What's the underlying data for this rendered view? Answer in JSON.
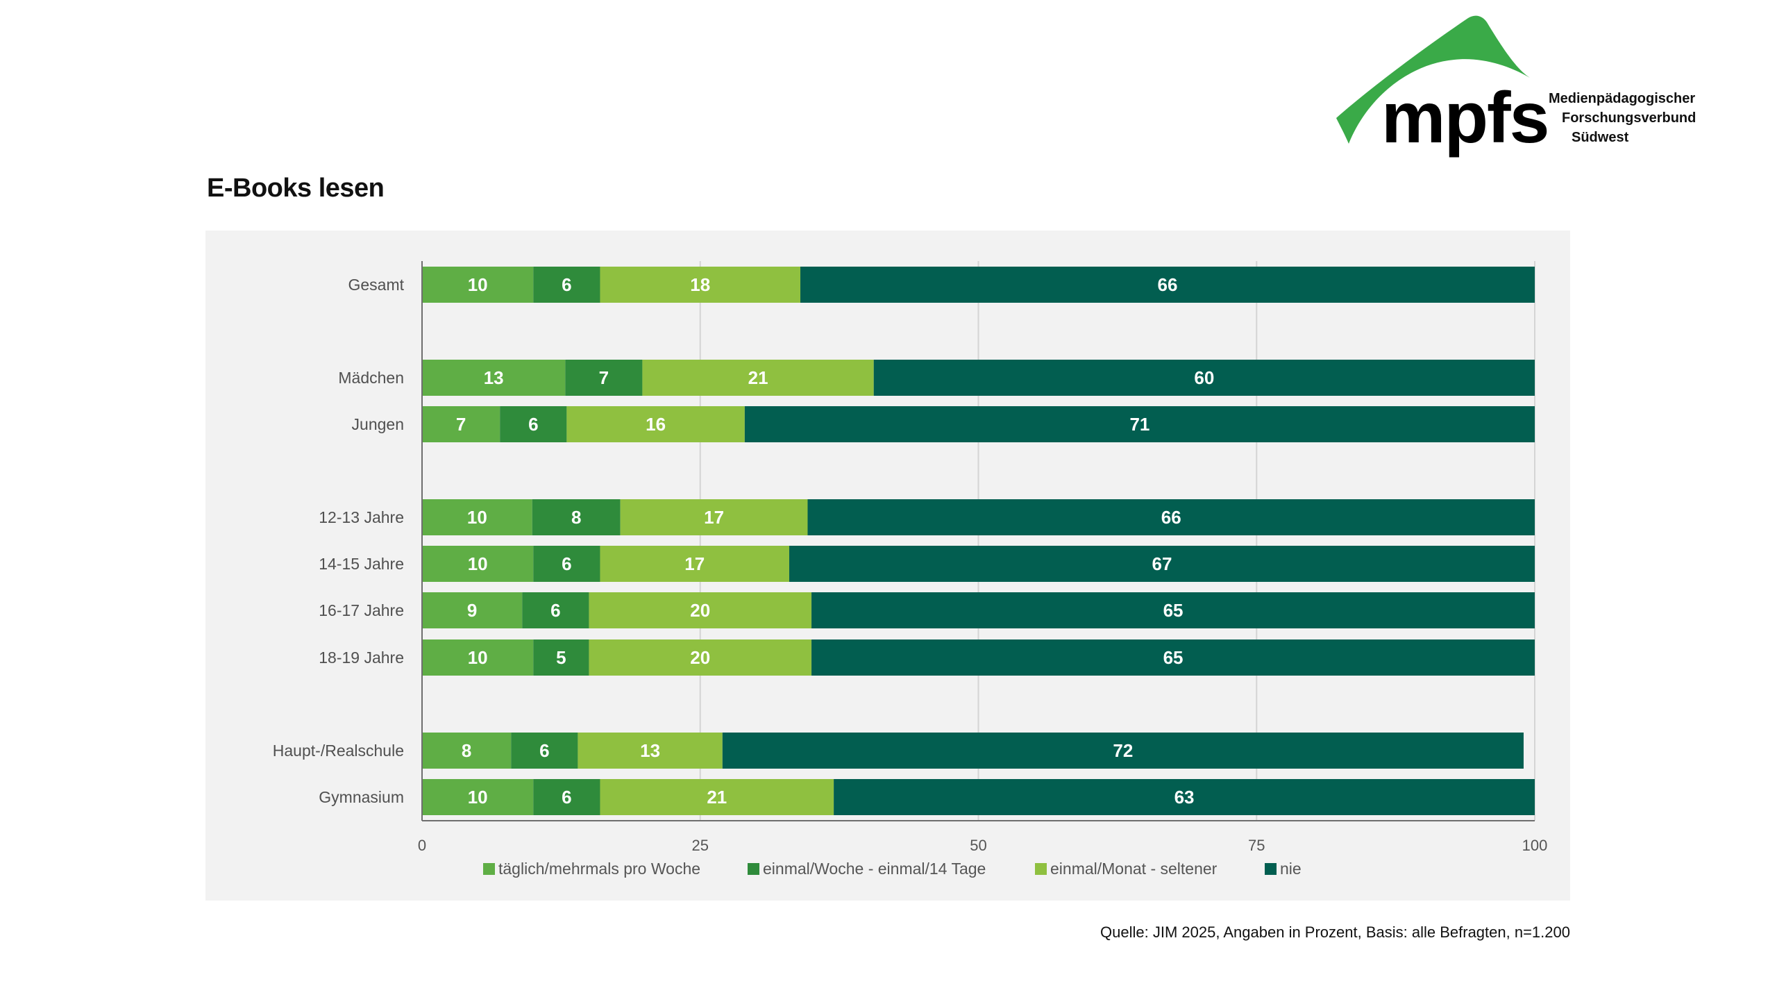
{
  "logo": {
    "wordmark": "mpfs",
    "lines": [
      "Medienpädagogischer",
      "Forschungsverbund",
      "Südwest"
    ],
    "color": "#3aaa48"
  },
  "source": "Quelle: JIM 2025, Angaben in Prozent, Basis: alle Befragten, n=1.200",
  "chart_data": {
    "type": "bar",
    "orientation": "horizontal",
    "stacked": true,
    "title": "E-Books lesen",
    "categories": [
      "Gesamt",
      "Mädchen",
      "Jungen",
      "12-13 Jahre",
      "14-15 Jahre",
      "16-17 Jahre",
      "18-19 Jahre",
      "Haupt-/Realschule",
      "Gymnasium"
    ],
    "groups": [
      [
        0
      ],
      [
        1,
        2
      ],
      [
        3,
        4,
        5,
        6
      ],
      [
        7,
        8
      ]
    ],
    "series": [
      {
        "name": "täglich/mehrmals pro Woche",
        "color": "#5fae45",
        "values": [
          10,
          13,
          7,
          10,
          10,
          9,
          10,
          8,
          10
        ]
      },
      {
        "name": "einmal/Woche - einmal/14 Tage",
        "color": "#2f8b3b",
        "values": [
          6,
          7,
          6,
          8,
          6,
          6,
          5,
          6,
          6
        ]
      },
      {
        "name": "einmal/Monat - seltener",
        "color": "#8fc040",
        "values": [
          18,
          21,
          16,
          17,
          17,
          20,
          20,
          13,
          21
        ]
      },
      {
        "name": "nie",
        "color": "#025e50",
        "values": [
          66,
          60,
          71,
          66,
          67,
          65,
          65,
          72,
          63
        ]
      }
    ],
    "xlim": [
      0,
      100
    ],
    "xticks": [
      "0",
      "25",
      "50",
      "75",
      "100"
    ],
    "xtick_values": [
      0,
      25,
      50,
      75,
      100
    ],
    "grid": true,
    "legend_position": "bottom",
    "xlabel": "",
    "ylabel": ""
  }
}
